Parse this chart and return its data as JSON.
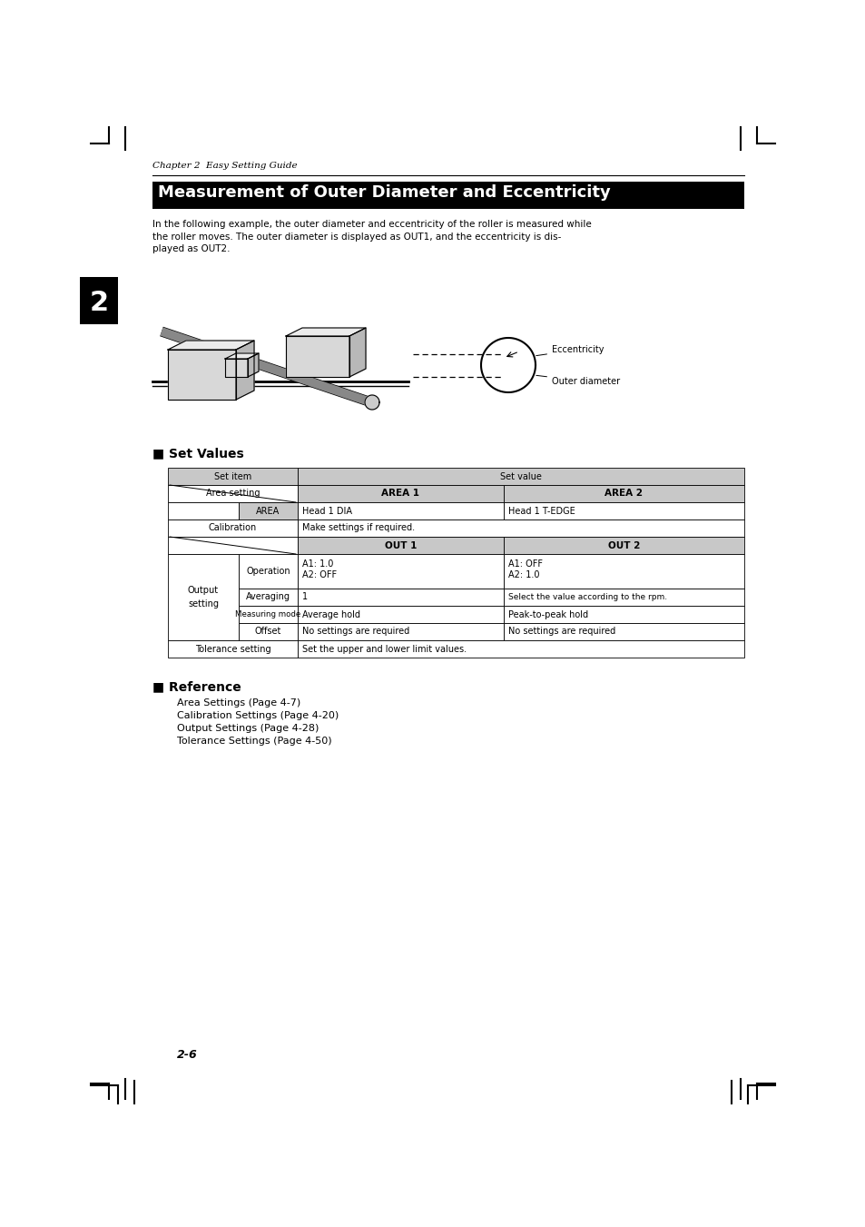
{
  "page_bg": "#ffffff",
  "chapter_label": "Chapter 2  Easy Setting Guide",
  "title": "Measurement of Outer Diameter and Eccentricity",
  "title_bg": "#000000",
  "title_color": "#ffffff",
  "body_text_lines": [
    "In the following example, the outer diameter and eccentricity of the roller is measured while",
    "the roller moves. The outer diameter is displayed as OUT1, and the eccentricity is dis-",
    "played as OUT2."
  ],
  "section1_title": "■ Set Values",
  "section2_title": "■ Reference",
  "reference_lines": [
    "Area Settings (Page 4-7)",
    "Calibration Settings (Page 4-20)",
    "Output Settings (Page 4-28)",
    "Tolerance Settings (Page 4-50)"
  ],
  "page_number": "2-6",
  "gray": "#c8c8c8",
  "white": "#ffffff",
  "black": "#000000"
}
